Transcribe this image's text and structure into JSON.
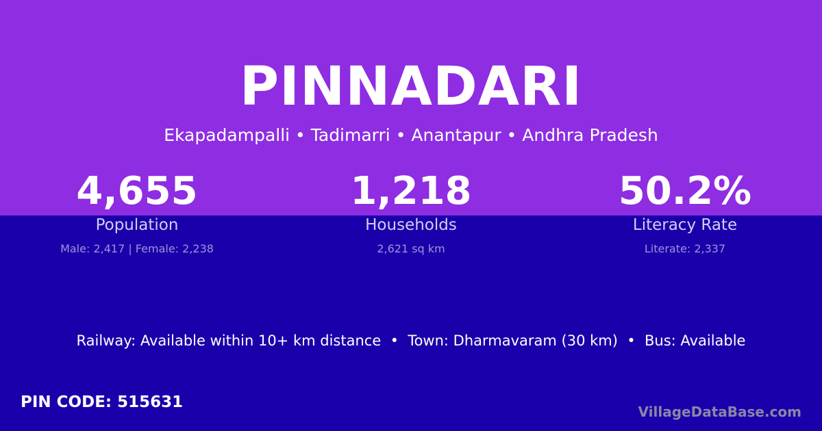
{
  "colors": {
    "top_bg": "#8e2de2",
    "bottom_bg": "#1a00aa"
  },
  "title": "PINNADARI",
  "location": "Ekapadampalli • Tadimarri • Anantapur • Andhra Pradesh",
  "stats": [
    {
      "value": "4,655",
      "label": "Population",
      "detail": "Male: 2,417 | Female: 2,238"
    },
    {
      "value": "1,218",
      "label": "Households",
      "detail": "2,621 sq km"
    },
    {
      "value": "50.2%",
      "label": "Literacy Rate",
      "detail": "Literate: 2,337"
    }
  ],
  "connectivity": "Railway: Available within 10+ km distance  •  Town: Dharmavaram (30 km)  •  Bus: Available",
  "pin_code": "PIN CODE: 515631",
  "brand": "VillageDataBase.com"
}
